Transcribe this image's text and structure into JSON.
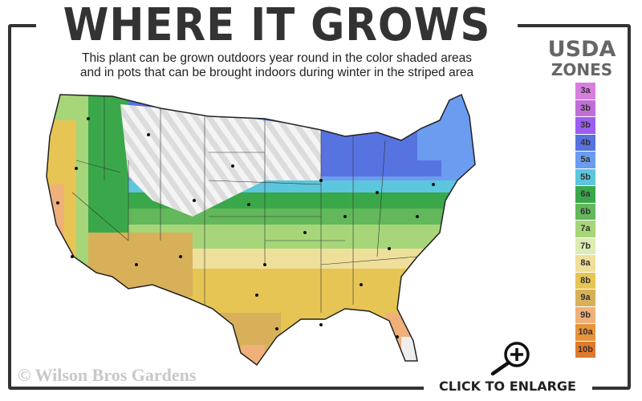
{
  "header": {
    "title": "WHERE IT GROWS",
    "subtitle_line1": "This plant can be grown outdoors year round in the color shaded areas",
    "subtitle_line2": "and in pots that can be brought indoors during winter in the striped area"
  },
  "legend": {
    "title_line1": "USDA",
    "title_line2": "ZONES",
    "zones": [
      {
        "label": "3a",
        "color": "#d77fe0"
      },
      {
        "label": "3b",
        "color": "#c06fd8"
      },
      {
        "label": "3b",
        "color": "#9c5ef0"
      },
      {
        "label": "4b",
        "color": "#5773e0"
      },
      {
        "label": "5a",
        "color": "#6b9cf0"
      },
      {
        "label": "5b",
        "color": "#5cc6dc"
      },
      {
        "label": "6a",
        "color": "#3aa84a"
      },
      {
        "label": "6b",
        "color": "#62b85a"
      },
      {
        "label": "7a",
        "color": "#a6d679"
      },
      {
        "label": "7b",
        "color": "#dcecb4"
      },
      {
        "label": "8a",
        "color": "#eedf9a"
      },
      {
        "label": "8b",
        "color": "#e6c554"
      },
      {
        "label": "9a",
        "color": "#d8b05a"
      },
      {
        "label": "9b",
        "color": "#f0b07a"
      },
      {
        "label": "10a",
        "color": "#e8943a"
      },
      {
        "label": "10b",
        "color": "#e07a2e"
      }
    ]
  },
  "footer": {
    "copyright": "© Wilson Bros Gardens",
    "enlarge_label": "CLICK TO ENLARGE"
  },
  "icons": {
    "enlarge": "magnifier-plus-icon"
  }
}
